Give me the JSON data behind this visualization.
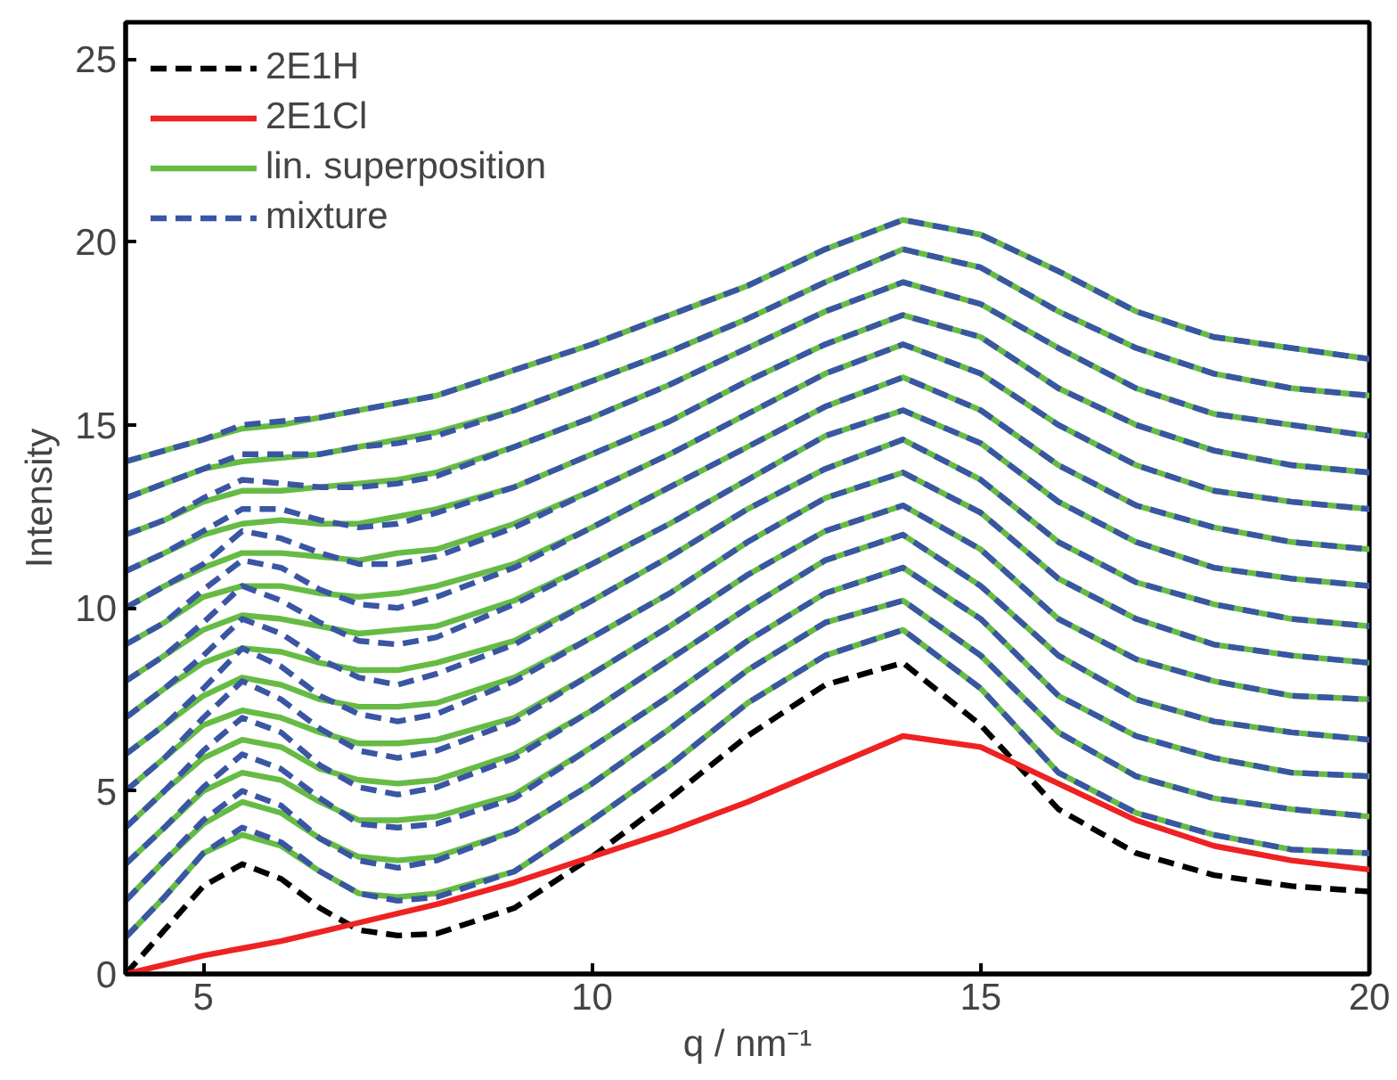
{
  "chart_data": {
    "type": "line",
    "xlabel": "q / nm⁻¹",
    "ylabel": "Intensity",
    "x": [
      4,
      4.5,
      5,
      5.5,
      6,
      6.5,
      7,
      7.5,
      8,
      9,
      10,
      11,
      12,
      13,
      14,
      15,
      16,
      17,
      18,
      19,
      20
    ],
    "xlim": [
      4,
      20
    ],
    "xticks": [
      5,
      10,
      15,
      20
    ],
    "ylim": [
      0,
      26
    ],
    "yticks": [
      0,
      5,
      10,
      15,
      20,
      25
    ],
    "grid": false,
    "legend": "top left",
    "marker": "none",
    "series": [
      {
        "name": "2E1H",
        "color": "#000000",
        "line_style": "dashed",
        "values": [
          0,
          1.2,
          2.4,
          3.0,
          2.6,
          1.8,
          1.2,
          1.05,
          1.1,
          1.8,
          3.2,
          4.8,
          6.5,
          7.9,
          8.5,
          6.8,
          4.5,
          3.3,
          2.7,
          2.4,
          2.25
        ]
      },
      {
        "name": "2E1Cl",
        "color": "#ee2222",
        "line_style": "solid",
        "values": [
          0,
          0.25,
          0.5,
          0.7,
          0.9,
          1.15,
          1.4,
          1.65,
          1.9,
          2.5,
          3.2,
          3.9,
          4.7,
          5.6,
          6.5,
          6.2,
          5.2,
          4.2,
          3.5,
          3.1,
          2.85
        ]
      },
      {
        "name": "lin. superposition",
        "color": "#66bb44",
        "line_style": "solid",
        "values": [
          1.0,
          2.1,
          3.3,
          3.8,
          3.5,
          2.8,
          2.2,
          2.1,
          2.2,
          2.8,
          4.2,
          5.7,
          7.4,
          8.7,
          9.4,
          7.8,
          5.5,
          4.4,
          3.8,
          3.4,
          3.3
        ]
      },
      {
        "color": "#66bb44",
        "line_style": "solid",
        "values": [
          2.0,
          3.1,
          4.1,
          4.7,
          4.4,
          3.7,
          3.2,
          3.1,
          3.2,
          3.9,
          5.2,
          6.7,
          8.3,
          9.6,
          10.2,
          8.7,
          6.6,
          5.4,
          4.8,
          4.5,
          4.3
        ]
      },
      {
        "color": "#66bb44",
        "line_style": "solid",
        "values": [
          3.0,
          4.0,
          5.0,
          5.5,
          5.3,
          4.7,
          4.2,
          4.2,
          4.3,
          4.9,
          6.2,
          7.6,
          9.1,
          10.4,
          11.1,
          9.7,
          7.6,
          6.5,
          5.9,
          5.5,
          5.4
        ]
      },
      {
        "color": "#66bb44",
        "line_style": "solid",
        "values": [
          4.0,
          5.0,
          5.9,
          6.4,
          6.2,
          5.6,
          5.3,
          5.2,
          5.3,
          6.0,
          7.2,
          8.6,
          10.0,
          11.3,
          12.0,
          10.6,
          8.7,
          7.5,
          6.9,
          6.6,
          6.4
        ]
      },
      {
        "color": "#66bb44",
        "line_style": "solid",
        "values": [
          5.0,
          5.9,
          6.8,
          7.2,
          7.0,
          6.6,
          6.3,
          6.3,
          6.4,
          7.0,
          8.2,
          9.5,
          10.9,
          12.1,
          12.8,
          11.6,
          9.7,
          8.6,
          8.0,
          7.6,
          7.5
        ]
      },
      {
        "color": "#66bb44",
        "line_style": "solid",
        "values": [
          6.0,
          6.8,
          7.6,
          8.1,
          7.9,
          7.5,
          7.3,
          7.3,
          7.4,
          8.1,
          9.2,
          10.4,
          11.8,
          13.0,
          13.7,
          12.6,
          10.8,
          9.7,
          9.0,
          8.7,
          8.5
        ]
      },
      {
        "color": "#66bb44",
        "line_style": "solid",
        "values": [
          7.0,
          7.8,
          8.5,
          8.9,
          8.8,
          8.5,
          8.3,
          8.3,
          8.5,
          9.1,
          10.2,
          11.4,
          12.7,
          13.8,
          14.6,
          13.5,
          11.8,
          10.7,
          10.1,
          9.7,
          9.5
        ]
      },
      {
        "color": "#66bb44",
        "line_style": "solid",
        "values": [
          8.0,
          8.7,
          9.4,
          9.8,
          9.7,
          9.5,
          9.3,
          9.4,
          9.5,
          10.2,
          11.2,
          12.3,
          13.5,
          14.7,
          15.4,
          14.5,
          12.9,
          11.8,
          11.1,
          10.8,
          10.6
        ]
      },
      {
        "color": "#66bb44",
        "line_style": "solid",
        "values": [
          9.0,
          9.6,
          10.3,
          10.6,
          10.6,
          10.4,
          10.3,
          10.4,
          10.6,
          11.2,
          12.2,
          13.3,
          14.4,
          15.5,
          16.3,
          15.4,
          13.9,
          12.8,
          12.2,
          11.8,
          11.6
        ]
      },
      {
        "color": "#66bb44",
        "line_style": "solid",
        "values": [
          10.0,
          10.6,
          11.1,
          11.5,
          11.5,
          11.4,
          11.3,
          11.5,
          11.6,
          12.3,
          13.2,
          14.2,
          15.3,
          16.4,
          17.2,
          16.4,
          15.0,
          13.9,
          13.2,
          12.9,
          12.7
        ]
      },
      {
        "color": "#66bb44",
        "line_style": "solid",
        "values": [
          11.0,
          11.5,
          12.0,
          12.3,
          12.4,
          12.3,
          12.3,
          12.5,
          12.7,
          13.3,
          14.2,
          15.1,
          16.2,
          17.2,
          18.0,
          17.4,
          16.0,
          15.0,
          14.3,
          13.9,
          13.7
        ]
      },
      {
        "color": "#66bb44",
        "line_style": "solid",
        "values": [
          12.0,
          12.4,
          12.9,
          13.2,
          13.2,
          13.3,
          13.4,
          13.5,
          13.7,
          14.4,
          15.2,
          16.1,
          17.1,
          18.1,
          18.9,
          18.3,
          17.1,
          16.0,
          15.3,
          15.0,
          14.7
        ]
      },
      {
        "color": "#66bb44",
        "line_style": "solid",
        "values": [
          13.0,
          13.4,
          13.8,
          14.0,
          14.1,
          14.2,
          14.4,
          14.6,
          14.8,
          15.4,
          16.2,
          17.0,
          17.9,
          18.9,
          19.8,
          19.3,
          18.1,
          17.1,
          16.4,
          16.0,
          15.8
        ]
      },
      {
        "color": "#66bb44",
        "line_style": "solid",
        "values": [
          14.0,
          14.3,
          14.6,
          14.9,
          15.0,
          15.2,
          15.4,
          15.6,
          15.8,
          16.5,
          17.2,
          18.0,
          18.8,
          19.8,
          20.6,
          20.2,
          19.2,
          18.1,
          17.4,
          17.1,
          16.8
        ]
      },
      {
        "name": "mixture",
        "color": "#3a55a4",
        "line_style": "dashed",
        "values": [
          1.0,
          2.1,
          3.3,
          4.0,
          3.6,
          2.8,
          2.2,
          2.0,
          2.1,
          2.8,
          4.2,
          5.7,
          7.4,
          8.7,
          9.4,
          7.8,
          5.5,
          4.4,
          3.8,
          3.4,
          3.3
        ]
      },
      {
        "color": "#3a55a4",
        "line_style": "dashed",
        "values": [
          2.0,
          3.1,
          4.2,
          5.0,
          4.6,
          3.7,
          3.1,
          2.9,
          3.1,
          3.9,
          5.2,
          6.7,
          8.3,
          9.6,
          10.2,
          8.7,
          6.6,
          5.4,
          4.8,
          4.5,
          4.3
        ]
      },
      {
        "color": "#3a55a4",
        "line_style": "dashed",
        "values": [
          3.0,
          4.0,
          5.1,
          6.0,
          5.6,
          4.8,
          4.1,
          4.0,
          4.1,
          4.8,
          6.2,
          7.6,
          9.1,
          10.4,
          11.1,
          9.7,
          7.6,
          6.5,
          5.9,
          5.5,
          5.4
        ]
      },
      {
        "color": "#3a55a4",
        "line_style": "dashed",
        "values": [
          4.0,
          5.0,
          6.1,
          7.0,
          6.6,
          5.7,
          5.1,
          4.9,
          5.1,
          5.9,
          7.2,
          8.6,
          10.0,
          11.3,
          12.0,
          10.6,
          8.7,
          7.5,
          6.9,
          6.6,
          6.4
        ]
      },
      {
        "color": "#3a55a4",
        "line_style": "dashed",
        "values": [
          5.0,
          5.9,
          7.0,
          8.0,
          7.5,
          6.7,
          6.1,
          5.9,
          6.1,
          6.9,
          8.2,
          9.5,
          10.9,
          12.1,
          12.8,
          11.6,
          9.7,
          8.6,
          8.0,
          7.6,
          7.5
        ]
      },
      {
        "color": "#3a55a4",
        "line_style": "dashed",
        "values": [
          6.0,
          6.8,
          7.8,
          8.9,
          8.4,
          7.6,
          7.1,
          6.9,
          7.1,
          8.0,
          9.2,
          10.4,
          11.8,
          13.0,
          13.7,
          12.6,
          10.8,
          9.7,
          9.0,
          8.7,
          8.5
        ]
      },
      {
        "color": "#3a55a4",
        "line_style": "dashed",
        "values": [
          7.0,
          7.8,
          8.7,
          9.7,
          9.3,
          8.6,
          8.1,
          7.9,
          8.2,
          9.0,
          10.2,
          11.4,
          12.7,
          13.8,
          14.6,
          13.5,
          11.8,
          10.7,
          10.1,
          9.7,
          9.5
        ]
      },
      {
        "color": "#3a55a4",
        "line_style": "dashed",
        "values": [
          8.0,
          8.7,
          9.6,
          10.6,
          10.2,
          9.6,
          9.1,
          9.0,
          9.2,
          10.1,
          11.2,
          12.3,
          13.5,
          14.7,
          15.4,
          14.5,
          12.9,
          11.8,
          11.1,
          10.8,
          10.6
        ]
      },
      {
        "color": "#3a55a4",
        "line_style": "dashed",
        "values": [
          9.0,
          9.6,
          10.5,
          11.3,
          11.1,
          10.5,
          10.1,
          10.0,
          10.3,
          11.1,
          12.2,
          13.3,
          14.4,
          15.5,
          16.3,
          15.4,
          13.9,
          12.8,
          12.2,
          11.8,
          11.6
        ]
      },
      {
        "color": "#3a55a4",
        "line_style": "dashed",
        "values": [
          10.0,
          10.6,
          11.2,
          12.1,
          11.9,
          11.5,
          11.2,
          11.2,
          11.4,
          12.2,
          13.2,
          14.2,
          15.3,
          16.4,
          17.2,
          16.4,
          15.0,
          13.9,
          13.2,
          12.9,
          12.7
        ]
      },
      {
        "color": "#3a55a4",
        "line_style": "dashed",
        "values": [
          11.0,
          11.5,
          12.1,
          12.7,
          12.7,
          12.4,
          12.2,
          12.3,
          12.6,
          13.3,
          14.2,
          15.1,
          16.2,
          17.2,
          18.0,
          17.4,
          16.0,
          15.0,
          14.3,
          13.9,
          13.7
        ]
      },
      {
        "color": "#3a55a4",
        "line_style": "dashed",
        "values": [
          12.0,
          12.4,
          13.0,
          13.5,
          13.4,
          13.3,
          13.3,
          13.4,
          13.6,
          14.4,
          15.2,
          16.1,
          17.1,
          18.1,
          18.9,
          18.3,
          17.1,
          16.0,
          15.3,
          15.0,
          14.7
        ]
      },
      {
        "color": "#3a55a4",
        "line_style": "dashed",
        "values": [
          13.0,
          13.4,
          13.8,
          14.2,
          14.2,
          14.2,
          14.4,
          14.5,
          14.7,
          15.4,
          16.2,
          17.0,
          17.9,
          18.9,
          19.8,
          19.3,
          18.1,
          17.1,
          16.4,
          16.0,
          15.8
        ]
      },
      {
        "color": "#3a55a4",
        "line_style": "dashed",
        "values": [
          14.0,
          14.3,
          14.6,
          15.0,
          15.1,
          15.2,
          15.4,
          15.6,
          15.8,
          16.5,
          17.2,
          18.0,
          18.8,
          19.8,
          20.6,
          20.2,
          19.2,
          18.1,
          17.4,
          17.1,
          16.8
        ]
      }
    ]
  }
}
